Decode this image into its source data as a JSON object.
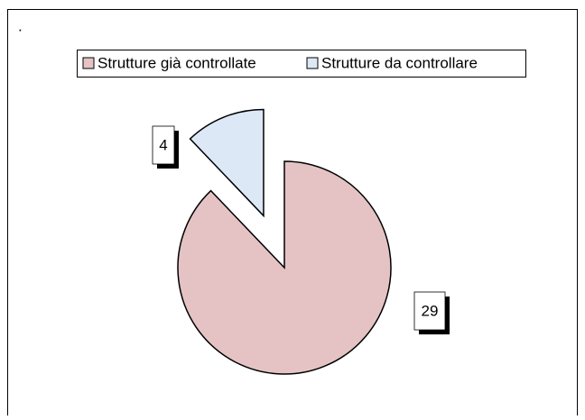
{
  "chart_data": {
    "type": "pie",
    "title": ".",
    "categories": [
      "Strutture già controllate",
      "Strutture da controllare"
    ],
    "values": [
      29,
      4
    ],
    "colors": [
      "#e5c3c4",
      "#dce8f6"
    ],
    "legend": "top"
  }
}
